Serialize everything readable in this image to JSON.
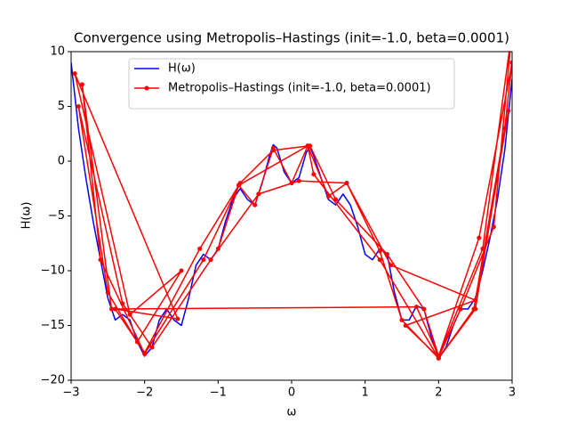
{
  "chart_data": {
    "type": "line",
    "title": "Convergence using Metropolis–Hastings (init=-1.0, beta=0.0001)",
    "x_label": "ω",
    "y_label": "H(ω)",
    "xlim": [
      -3,
      3
    ],
    "ylim": [
      -20,
      10
    ],
    "xticks": [
      {
        "value": -3,
        "label": "−3"
      },
      {
        "value": -2,
        "label": "−2"
      },
      {
        "value": -1,
        "label": "−1"
      },
      0,
      1,
      2,
      3
    ],
    "yticks": [
      {
        "value": -20,
        "label": "−20"
      },
      {
        "value": -15,
        "label": "−15"
      },
      {
        "value": -10,
        "label": "−10"
      },
      {
        "value": -5,
        "label": "−5"
      },
      0,
      5,
      10
    ],
    "legend": "upper center",
    "series": [
      {
        "name": "H(ω)",
        "color": "#0000ff",
        "marker": false,
        "x": [
          -3,
          -2.9,
          -2.8,
          -2.7,
          -2.6,
          -2.5,
          -2.4,
          -2.3,
          -2.2,
          -2.1,
          -2.0,
          -1.9,
          -1.8,
          -1.7,
          -1.6,
          -1.5,
          -1.4,
          -1.3,
          -1.2,
          -1.1,
          -1.0,
          -0.9,
          -0.8,
          -0.7,
          -0.6,
          -0.5,
          -0.4,
          -0.3,
          -0.25,
          -0.2,
          -0.1,
          0,
          0.1,
          0.2,
          0.25,
          0.3,
          0.4,
          0.5,
          0.6,
          0.7,
          0.8,
          0.9,
          1.0,
          1.1,
          1.2,
          1.3,
          1.4,
          1.5,
          1.6,
          1.7,
          1.8,
          1.9,
          2.0,
          2.1,
          2.2,
          2.3,
          2.4,
          2.5,
          2.6,
          2.7,
          2.8,
          2.9,
          3.0
        ],
        "values": [
          9,
          3,
          -1.5,
          -5.5,
          -9,
          -12.5,
          -14.5,
          -14,
          -14.5,
          -16.5,
          -17.8,
          -17,
          -14.5,
          -13.5,
          -14.5,
          -15,
          -12.5,
          -9.5,
          -8.5,
          -9,
          -8,
          -5.5,
          -3.5,
          -2.5,
          -3.5,
          -4,
          -2,
          0.5,
          1.5,
          1.2,
          -1,
          -2,
          -1.5,
          0.8,
          1.3,
          0.5,
          -1.5,
          -3.5,
          -4,
          -3,
          -4,
          -6,
          -8.5,
          -9,
          -8,
          -8.5,
          -12,
          -14.5,
          -14.5,
          -13.2,
          -13.5,
          -16,
          -18,
          -17,
          -15,
          -13.5,
          -13.5,
          -12.5,
          -10,
          -7,
          -3.5,
          1,
          7.5
        ]
      },
      {
        "name": "Metropolis–Hastings (init=-1.0, beta=0.0001)",
        "color": "#ff0000",
        "marker": true,
        "x": [
          -1.0,
          -0.72,
          -0.5,
          -0.25,
          0,
          0.22,
          0.5,
          0.75,
          1.2,
          1.5,
          2.0,
          2.48,
          2.9,
          3.0,
          2.55,
          2.0,
          1.8,
          1.3,
          0.6,
          0.25,
          -0.25,
          -0.7,
          -1.25,
          -2.0,
          -2.4,
          -1.55,
          -2.95,
          -2.2,
          -1.5,
          -2.1,
          -2.5,
          -2.9,
          -2.3,
          -1.9,
          -1.1,
          -0.45,
          0.1,
          0.75,
          1.35,
          2.5,
          1.55,
          2.0,
          2.3,
          2.75,
          3.0,
          2.6,
          2.0,
          1.7,
          -2.45,
          -2.85,
          -2.6,
          -2.0,
          -1.2,
          -0.72,
          0.22,
          0.3,
          1.2,
          2.0,
          2.5,
          2.95
        ],
        "values": [
          -8,
          -2.2,
          -4,
          1.2,
          -2,
          1.4,
          -3.2,
          -2,
          -8.2,
          -14.5,
          -18,
          -13.5,
          3,
          9,
          -7,
          -17.8,
          -13.5,
          -8.5,
          -3.5,
          1.4,
          1,
          -2,
          -8,
          -17.5,
          -13.5,
          -14.4,
          8,
          -14,
          -10,
          -16.5,
          -12,
          5,
          -13,
          -17,
          -9,
          -3,
          -1.8,
          -2,
          -9.5,
          -12.7,
          -15,
          -17.9,
          -13.5,
          -6,
          12,
          -8,
          -17.8,
          -13.3,
          -13.5,
          7,
          -9,
          -17.6,
          -9,
          -2.2,
          1.4,
          -1.2,
          -9,
          -18,
          -13.5,
          4.6
        ]
      }
    ]
  }
}
